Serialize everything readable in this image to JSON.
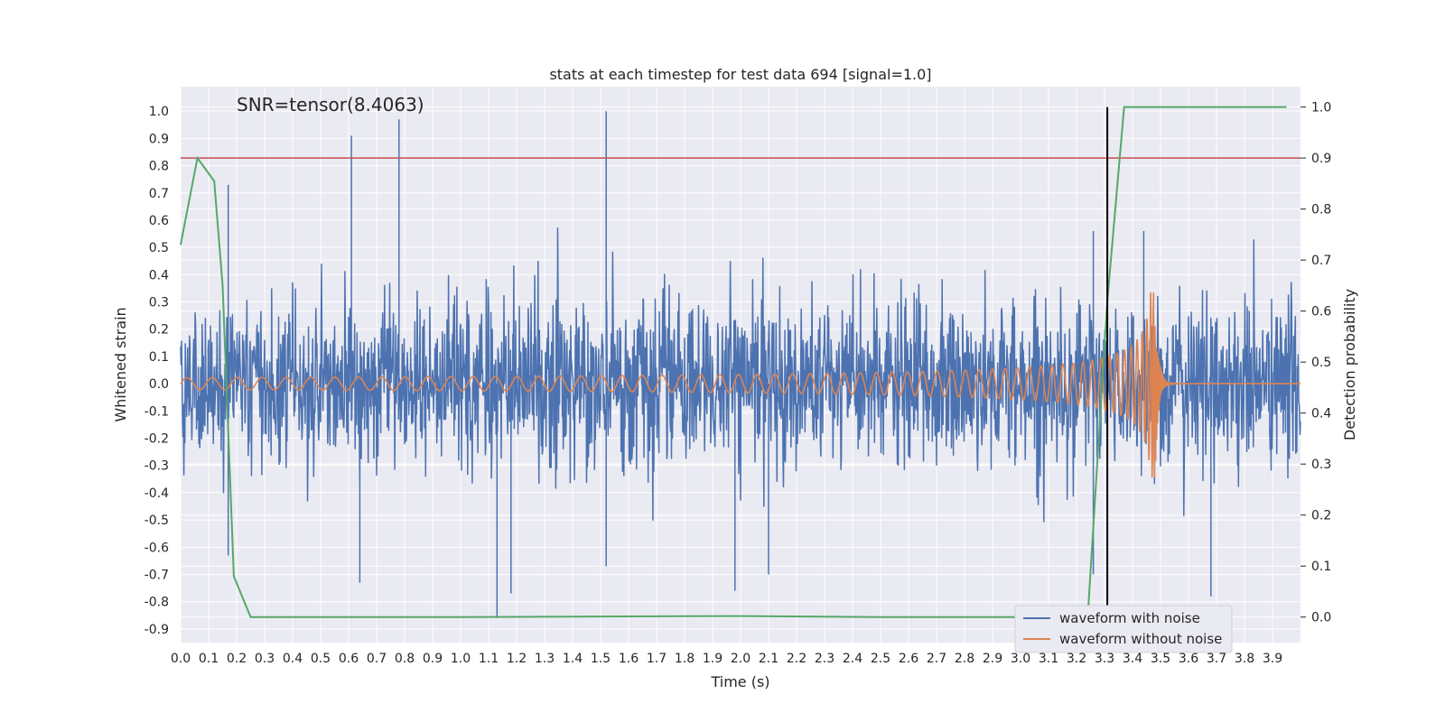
{
  "chart_data": {
    "type": "line",
    "title": "stats at each timestep for test data 694 [signal=1.0]",
    "xlabel": "Time (s)",
    "ylabel": "Whitened strain",
    "y2label": "Detection probability",
    "annotation": "SNR=tensor(8.4063)",
    "xlim": [
      0.0,
      4.0
    ],
    "ylim": [
      -0.95,
      1.09
    ],
    "y2lim": [
      -0.05,
      1.04
    ],
    "x_ticks": [
      "0.0",
      "0.1",
      "0.2",
      "0.3",
      "0.4",
      "0.5",
      "0.6",
      "0.7",
      "0.8",
      "0.9",
      "1.0",
      "1.1",
      "1.2",
      "1.3",
      "1.4",
      "1.5",
      "1.6",
      "1.7",
      "1.8",
      "1.9",
      "2.0",
      "2.1",
      "2.2",
      "2.3",
      "2.4",
      "2.5",
      "2.6",
      "2.7",
      "2.8",
      "2.9",
      "3.0",
      "3.1",
      "3.2",
      "3.3",
      "3.4",
      "3.5",
      "3.6",
      "3.7",
      "3.8",
      "3.9"
    ],
    "y_ticks": [
      "1.0",
      "0.9",
      "0.8",
      "0.7",
      "0.6",
      "0.5",
      "0.4",
      "0.3",
      "0.2",
      "0.1",
      "0.0",
      "-0.1",
      "-0.2",
      "-0.3",
      "-0.4",
      "-0.5",
      "-0.6",
      "-0.7",
      "-0.8",
      "-0.9"
    ],
    "y2_ticks": [
      "1.0",
      "0.9",
      "0.8",
      "0.7",
      "0.6",
      "0.5",
      "0.4",
      "0.3",
      "0.2",
      "0.1",
      "0.0"
    ],
    "legend_position": "lower-right",
    "series": [
      {
        "name": "waveform with noise",
        "color": "#4c72b0",
        "description": "whitened noisy strain, roughly between -0.45 and 0.45 with spikes",
        "spikes": [
          [
            0.17,
            0.73
          ],
          [
            0.17,
            -0.63
          ],
          [
            0.61,
            0.91
          ],
          [
            0.64,
            -0.73
          ],
          [
            0.78,
            0.97
          ],
          [
            1.13,
            -0.86
          ],
          [
            1.18,
            -0.77
          ],
          [
            1.52,
            1.0
          ],
          [
            1.52,
            -0.67
          ],
          [
            1.98,
            -0.76
          ],
          [
            2.1,
            -0.7
          ],
          [
            3.26,
            -0.7
          ],
          [
            3.68,
            -0.78
          ],
          [
            3.26,
            0.56
          ],
          [
            3.44,
            0.56
          ]
        ]
      },
      {
        "name": "waveform without noise",
        "color": "#dd8452",
        "description": "chirp signal growing in amplitude and frequency until merger near 3.48 s",
        "merger_time": 3.48,
        "peak_amplitude": 0.35
      },
      {
        "name": "detection probability",
        "color": "#55a868",
        "axis": "right",
        "x": [
          0.0,
          0.06,
          0.12,
          0.15,
          0.19,
          0.25,
          1.0,
          2.0,
          2.5,
          3.0,
          3.24,
          3.31,
          3.37,
          3.95
        ],
        "y": [
          0.73,
          0.9,
          0.855,
          0.65,
          0.08,
          0.0,
          0.0,
          0.002,
          0.0,
          0.0,
          0.0,
          0.62,
          1.0,
          1.0
        ]
      }
    ],
    "threshold_line": {
      "axis": "right",
      "value": 0.9,
      "color": "#c44e52"
    },
    "vertical_line": {
      "x": 3.31,
      "color": "#000000"
    },
    "legend": [
      {
        "label": "waveform with noise",
        "color": "#4c72b0"
      },
      {
        "label": "waveform without noise",
        "color": "#dd8452"
      }
    ]
  }
}
